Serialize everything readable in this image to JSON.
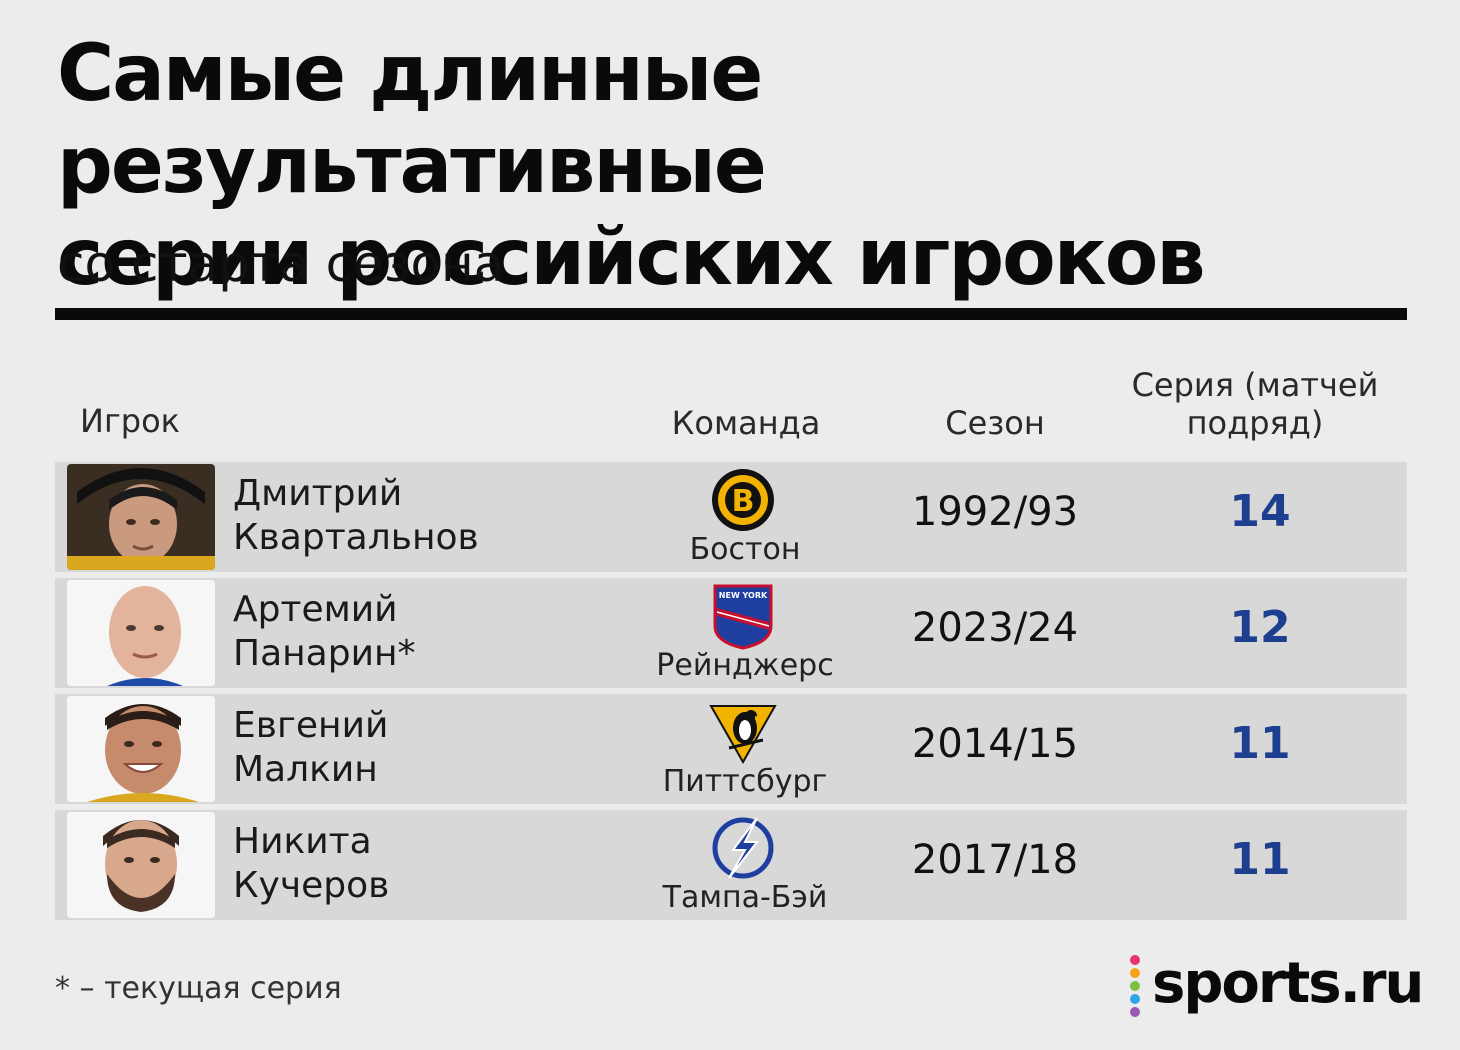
{
  "title_line1": "Самые длинные результативные",
  "title_line2": "серии российских игроков",
  "subtitle": "со старта сезона",
  "headers": {
    "player": "Игрок",
    "team": "Команда",
    "season": "Сезон",
    "streak_line1": "Серия (матчей",
    "streak_line2": "подряд)"
  },
  "chart_data": {
    "type": "table",
    "title": "Самые длинные результативные серии российских игроков",
    "subtitle": "со старта сезона",
    "columns": [
      "Игрок",
      "Команда",
      "Сезон",
      "Серия (матчей подряд)"
    ],
    "rows": [
      {
        "first": "Дмитрий",
        "last": "Квартальнов",
        "team": "Бостон",
        "season": "1992/93",
        "streak": "14",
        "logo": "boston-bruins-logo"
      },
      {
        "first": "Артемий",
        "last": "Панарин*",
        "team": "Рейнджерс",
        "season": "2023/24",
        "streak": "12",
        "logo": "new-york-rangers-logo"
      },
      {
        "first": "Евгений",
        "last": "Малкин",
        "team": "Питтсбург",
        "season": "2014/15",
        "streak": "11",
        "logo": "pittsburgh-penguins-logo"
      },
      {
        "first": "Никита",
        "last": "Кучеров",
        "team": "Тампа-Бэй",
        "season": "2017/18",
        "streak": "11",
        "logo": "tampa-bay-lightning-logo"
      }
    ],
    "streak_color": "#1c3f8f"
  },
  "footnote": "* – текущая серия",
  "brand": "sports.ru"
}
